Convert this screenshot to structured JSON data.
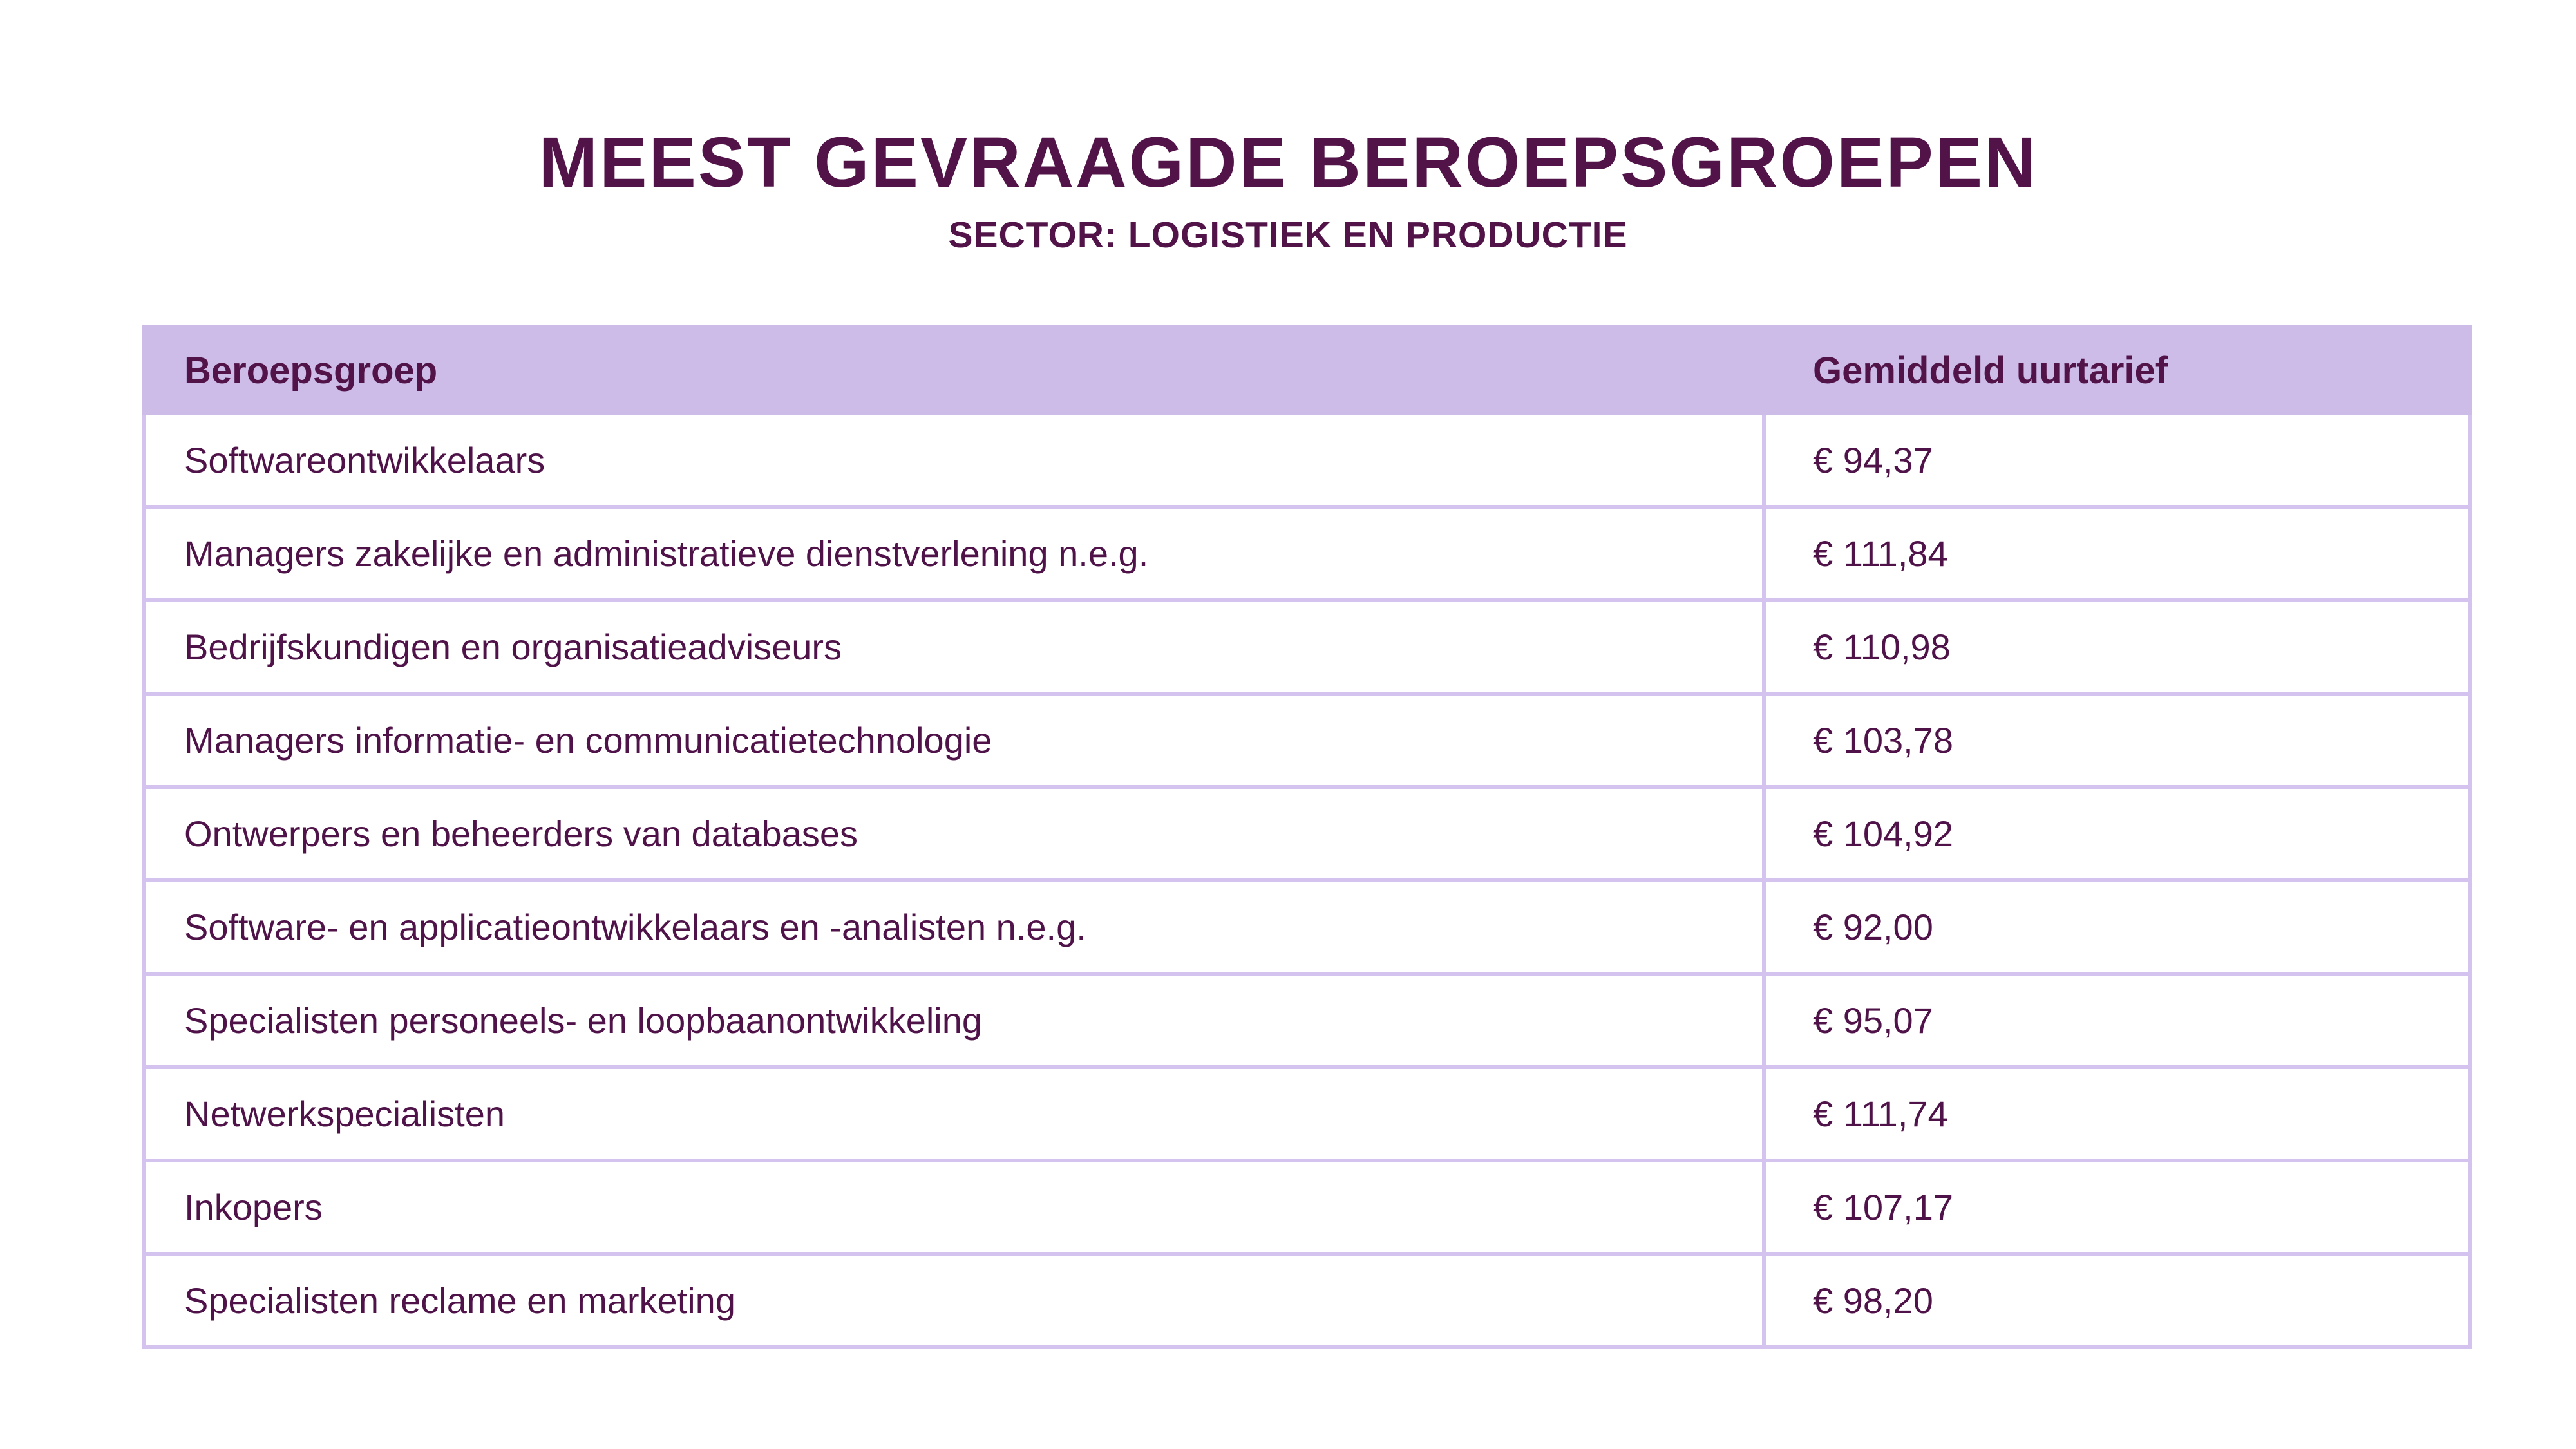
{
  "title": "MEEST GEVRAAGDE BEROEPSGROEPEN",
  "subtitle": "SECTOR: LOGISTIEK EN PRODUCTIE",
  "colors": {
    "text_dark_purple": "#521349",
    "header_background": "#cdbce8",
    "grid_lines": "#d4c3ef",
    "page_background": "#ffffff"
  },
  "table": {
    "columns": [
      "Beroepsgroep",
      "Gemiddeld uurtarief"
    ],
    "rows": [
      {
        "beroepsgroep": "Softwareontwikkelaars",
        "uurtarief": "€ 94,37"
      },
      {
        "beroepsgroep": "Managers zakelijke en administratieve dienstverlening n.e.g.",
        "uurtarief": "€ 111,84"
      },
      {
        "beroepsgroep": "Bedrijfskundigen en organisatieadviseurs",
        "uurtarief": "€ 110,98"
      },
      {
        "beroepsgroep": "Managers informatie- en communicatietechnologie",
        "uurtarief": "€ 103,78"
      },
      {
        "beroepsgroep": "Ontwerpers en beheerders van databases",
        "uurtarief": "€ 104,92"
      },
      {
        "beroepsgroep": "Software- en applicatieontwikkelaars en -analisten n.e.g.",
        "uurtarief": "€ 92,00"
      },
      {
        "beroepsgroep": "Specialisten personeels- en loopbaanontwikkeling",
        "uurtarief": "€ 95,07"
      },
      {
        "beroepsgroep": "Netwerkspecialisten",
        "uurtarief": "€ 111,74"
      },
      {
        "beroepsgroep": "Inkopers",
        "uurtarief": "€ 107,17"
      },
      {
        "beroepsgroep": "Specialisten reclame en marketing",
        "uurtarief": "€ 98,20"
      }
    ]
  },
  "chart_data": {
    "type": "table",
    "title": "MEEST GEVRAAGDE BEROEPSGROEPEN",
    "subtitle": "SECTOR: LOGISTIEK EN PRODUCTIE",
    "columns": [
      "Beroepsgroep",
      "Gemiddeld uurtarief"
    ],
    "categories": [
      "Softwareontwikkelaars",
      "Managers zakelijke en administratieve dienstverlening n.e.g.",
      "Bedrijfskundigen en organisatieadviseurs",
      "Managers informatie- en communicatietechnologie",
      "Ontwerpers en beheerders van databases",
      "Software- en applicatieontwikkelaars en -analisten n.e.g.",
      "Specialisten personeels- en loopbaanontwikkeling",
      "Netwerkspecialisten",
      "Inkopers",
      "Specialisten reclame en marketing"
    ],
    "values": [
      94.37,
      111.84,
      110.98,
      103.78,
      104.92,
      92.0,
      95.07,
      111.74,
      107.17,
      98.2
    ],
    "value_unit": "EUR per uur",
    "value_format": "€ #.##0,00"
  }
}
